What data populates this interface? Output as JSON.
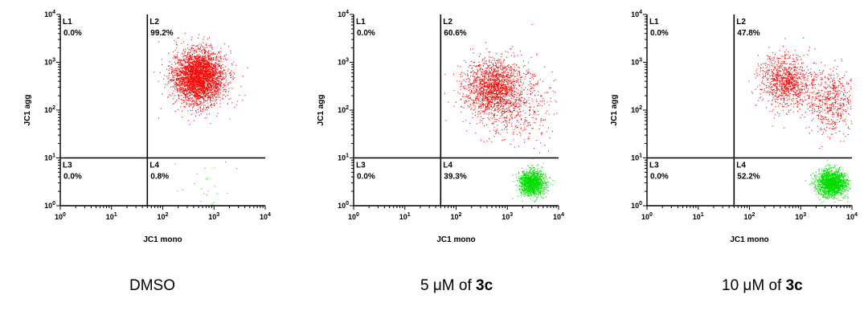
{
  "chart_data": [
    {
      "type": "scatter",
      "xlabel": "JC1 mono",
      "ylabel": "JC1 agg",
      "x_scale": "log",
      "y_scale": "log",
      "xlim": [
        1,
        10000
      ],
      "ylim": [
        1,
        10000
      ],
      "x_tick_labels": [
        "10^0",
        "10^1",
        "10^2",
        "10^3",
        "10^4"
      ],
      "y_tick_labels": [
        "10^0",
        "10^1",
        "10^2",
        "10^3",
        "10^4"
      ],
      "quadrant_gate": {
        "x": 50,
        "y": 10
      },
      "quadrants": [
        {
          "label": "L1",
          "percent": "0.0%"
        },
        {
          "label": "L2",
          "percent": "99.2%"
        },
        {
          "label": "L3",
          "percent": "0.0%"
        },
        {
          "label": "L4",
          "percent": "0.8%"
        }
      ],
      "populations": [
        {
          "color": "#ff0000",
          "center_x": 500,
          "center_y": 500,
          "spread_x": 0.25,
          "spread_y": 0.28,
          "fraction": 0.992
        },
        {
          "color": "#00dd00",
          "center_x": 700,
          "center_y": 2.5,
          "spread_x": 0.3,
          "spread_y": 0.25,
          "fraction": 0.008
        }
      ],
      "caption": {
        "prefix": "DMSO",
        "bold": ""
      }
    },
    {
      "type": "scatter",
      "xlabel": "JC1 mono",
      "ylabel": "JC1 agg",
      "x_scale": "log",
      "y_scale": "log",
      "xlim": [
        1,
        10000
      ],
      "ylim": [
        1,
        10000
      ],
      "x_tick_labels": [
        "10^0",
        "10^1",
        "10^2",
        "10^3",
        "10^4"
      ],
      "y_tick_labels": [
        "10^0",
        "10^1",
        "10^2",
        "10^3",
        "10^4"
      ],
      "quadrant_gate": {
        "x": 50,
        "y": 10
      },
      "quadrants": [
        {
          "label": "L1",
          "percent": "0.0%"
        },
        {
          "label": "L2",
          "percent": "60.6%"
        },
        {
          "label": "L3",
          "percent": "0.0%"
        },
        {
          "label": "L4",
          "percent": "39.3%"
        }
      ],
      "populations": [
        {
          "color": "#ff0000",
          "center_x": 500,
          "center_y": 300,
          "spread_x": 0.28,
          "spread_y": 0.3,
          "fraction": 0.45
        },
        {
          "color": "#ff0000",
          "center_x": 1500,
          "center_y": 150,
          "spread_x": 0.4,
          "spread_y": 0.4,
          "fraction": 0.156
        },
        {
          "color": "#00dd00",
          "center_x": 3000,
          "center_y": 3,
          "spread_x": 0.12,
          "spread_y": 0.13,
          "fraction": 0.393
        }
      ],
      "caption": {
        "prefix": "5 μM of ",
        "bold": "3c"
      }
    },
    {
      "type": "scatter",
      "xlabel": "JC1 mono",
      "ylabel": "JC1 agg",
      "x_scale": "log",
      "y_scale": "log",
      "xlim": [
        1,
        10000
      ],
      "ylim": [
        1,
        10000
      ],
      "x_tick_labels": [
        "10^0",
        "10^1",
        "10^2",
        "10^3",
        "10^4"
      ],
      "y_tick_labels": [
        "10^0",
        "10^1",
        "10^2",
        "10^3",
        "10^4"
      ],
      "quadrant_gate": {
        "x": 50,
        "y": 10
      },
      "quadrants": [
        {
          "label": "L1",
          "percent": "0.0%"
        },
        {
          "label": "L2",
          "percent": "47.8%"
        },
        {
          "label": "L3",
          "percent": "0.0%"
        },
        {
          "label": "L4",
          "percent": "52.2%"
        }
      ],
      "populations": [
        {
          "color": "#ff0000",
          "center_x": 500,
          "center_y": 400,
          "spread_x": 0.25,
          "spread_y": 0.28,
          "fraction": 0.3
        },
        {
          "color": "#ff0000",
          "center_x": 4000,
          "center_y": 150,
          "spread_x": 0.25,
          "spread_y": 0.35,
          "fraction": 0.178
        },
        {
          "color": "#00dd00",
          "center_x": 4000,
          "center_y": 3,
          "spread_x": 0.14,
          "spread_y": 0.14,
          "fraction": 0.522
        }
      ],
      "caption": {
        "prefix": "10 μM of ",
        "bold": "3c"
      }
    }
  ]
}
